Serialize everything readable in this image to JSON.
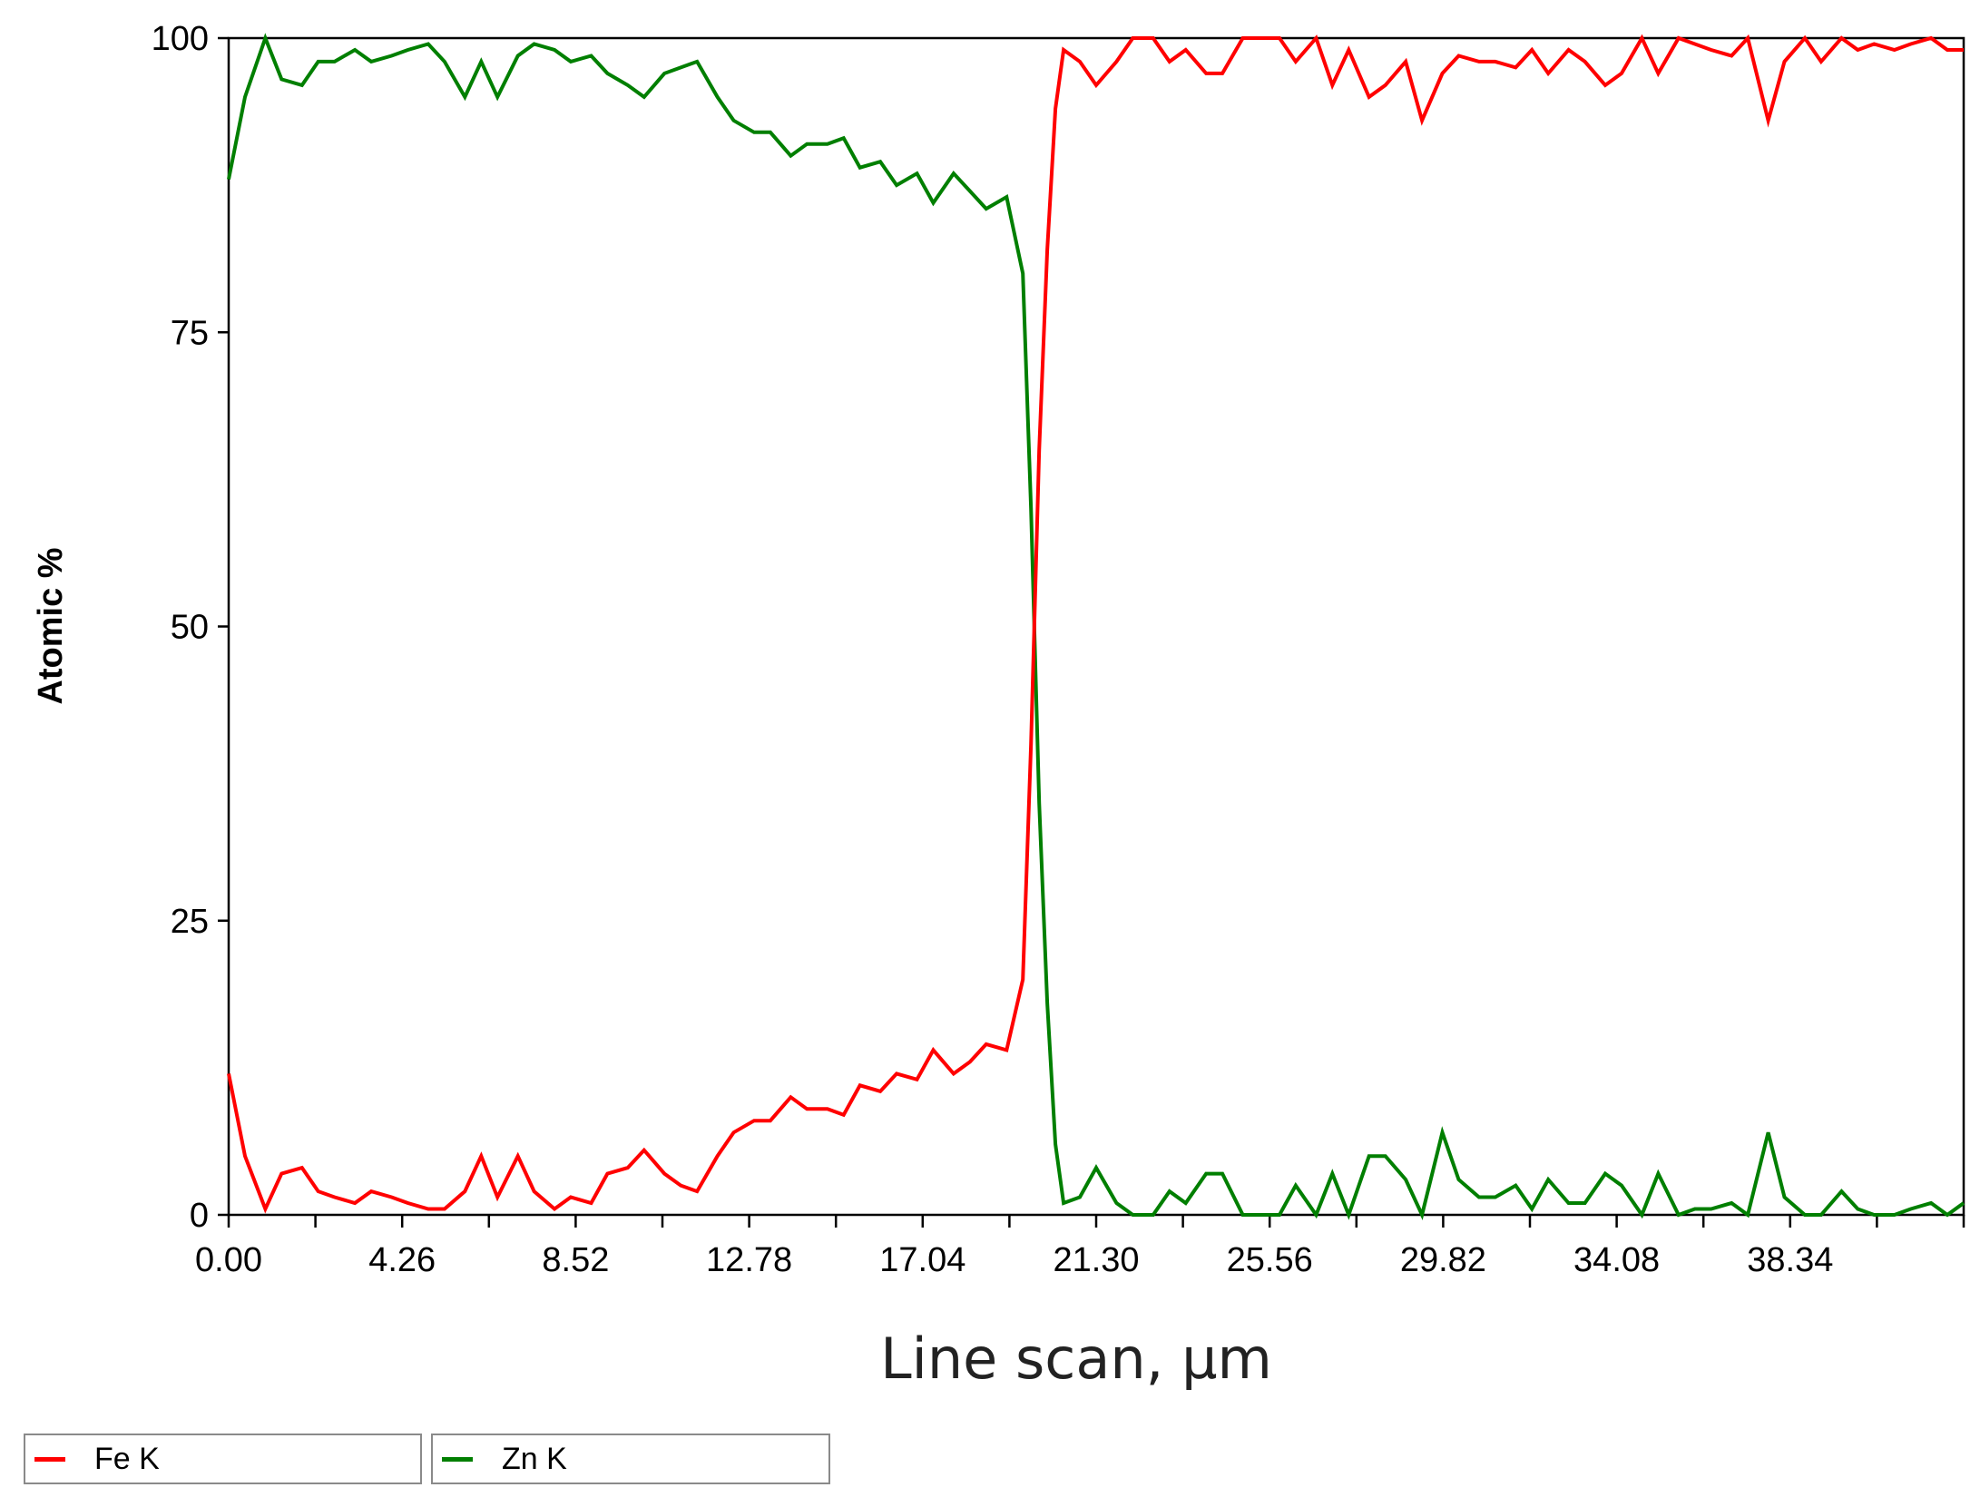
{
  "chart_data": {
    "type": "line",
    "title": "",
    "xlabel": "Line scan, µm",
    "ylabel": "Atomic %",
    "xlim": [
      0,
      42.6
    ],
    "ylim": [
      0,
      100
    ],
    "x_ticks": [
      "0.00",
      "4.26",
      "8.52",
      "12.78",
      "17.04",
      "21.30",
      "25.56",
      "29.82",
      "34.08",
      "38.34"
    ],
    "y_ticks": [
      "0",
      "25",
      "50",
      "75",
      "100"
    ],
    "grid": false,
    "legend_position": "bottom",
    "series": [
      {
        "name": "Fe K",
        "color": "#ff0000",
        "x": [
          0.0,
          0.4,
          0.9,
          1.3,
          1.8,
          2.2,
          2.6,
          3.1,
          3.5,
          4.0,
          4.4,
          4.9,
          5.3,
          5.8,
          6.2,
          6.6,
          7.1,
          7.5,
          8.0,
          8.4,
          8.9,
          9.3,
          9.8,
          10.2,
          10.7,
          11.1,
          11.5,
          12.0,
          12.4,
          12.9,
          13.3,
          13.8,
          14.2,
          14.7,
          15.1,
          15.5,
          16.0,
          16.4,
          16.9,
          17.3,
          17.8,
          18.2,
          18.6,
          19.1,
          19.5,
          19.7,
          19.9,
          20.1,
          20.3,
          20.5,
          20.9,
          21.3,
          21.8,
          22.2,
          22.7,
          23.1,
          23.5,
          24.0,
          24.4,
          24.9,
          25.3,
          25.8,
          26.2,
          26.7,
          27.1,
          27.5,
          28.0,
          28.4,
          28.9,
          29.3,
          29.8,
          30.2,
          30.7,
          31.1,
          31.6,
          32.0,
          32.4,
          32.9,
          33.3,
          33.8,
          34.2,
          34.7,
          35.1,
          35.6,
          36.0,
          36.4,
          36.9,
          37.3,
          37.8,
          38.2,
          38.7,
          39.1,
          39.6,
          40.0,
          40.4,
          40.9,
          41.3,
          41.8,
          42.2,
          42.6
        ],
        "y": [
          12,
          5,
          0.5,
          3.5,
          4,
          2,
          1.5,
          1,
          2,
          1.5,
          1,
          0.5,
          0.5,
          2,
          5,
          1.5,
          5,
          2,
          0.5,
          1.5,
          1,
          3.5,
          4,
          5.5,
          3.5,
          2.5,
          2,
          5,
          7,
          8,
          8,
          10,
          9,
          9,
          8.5,
          11,
          10.5,
          12,
          11.5,
          14,
          12,
          13,
          14.5,
          14,
          20,
          40,
          65,
          82,
          94,
          99,
          98,
          96,
          98,
          100,
          100,
          98,
          99,
          97,
          97,
          100,
          100,
          100,
          98,
          100,
          96,
          99,
          95,
          96,
          98,
          93,
          97,
          98.5,
          98,
          98,
          97.5,
          99,
          97,
          99,
          98,
          96,
          97,
          100,
          97,
          100,
          99.5,
          99,
          98.5,
          100,
          93,
          98,
          100,
          98,
          100,
          99,
          99.5,
          99,
          99.5,
          100,
          99,
          99
        ]
      },
      {
        "name": "Zn K",
        "color": "#007f00",
        "x": [
          0.0,
          0.4,
          0.9,
          1.3,
          1.8,
          2.2,
          2.6,
          3.1,
          3.5,
          4.0,
          4.4,
          4.9,
          5.3,
          5.8,
          6.2,
          6.6,
          7.1,
          7.5,
          8.0,
          8.4,
          8.9,
          9.3,
          9.8,
          10.2,
          10.7,
          11.1,
          11.5,
          12.0,
          12.4,
          12.9,
          13.3,
          13.8,
          14.2,
          14.7,
          15.1,
          15.5,
          16.0,
          16.4,
          16.9,
          17.3,
          17.8,
          18.2,
          18.6,
          19.1,
          19.5,
          19.7,
          19.9,
          20.1,
          20.3,
          20.5,
          20.9,
          21.3,
          21.8,
          22.2,
          22.7,
          23.1,
          23.5,
          24.0,
          24.4,
          24.9,
          25.3,
          25.8,
          26.2,
          26.7,
          27.1,
          27.5,
          28.0,
          28.4,
          28.9,
          29.3,
          29.8,
          30.2,
          30.7,
          31.1,
          31.6,
          32.0,
          32.4,
          32.9,
          33.3,
          33.8,
          34.2,
          34.7,
          35.1,
          35.6,
          36.0,
          36.4,
          36.9,
          37.3,
          37.8,
          38.2,
          38.7,
          39.1,
          39.6,
          40.0,
          40.4,
          40.9,
          41.3,
          41.8,
          42.2,
          42.6
        ],
        "y": [
          88,
          95,
          100,
          96.5,
          96,
          98,
          98,
          99,
          98,
          98.5,
          99,
          99.5,
          98,
          95,
          98,
          95,
          98.5,
          99.5,
          99,
          98,
          98.5,
          97,
          96,
          95,
          97,
          97.5,
          98,
          95,
          93,
          92,
          92,
          90,
          91,
          91,
          91.5,
          89,
          89.5,
          87.5,
          88.5,
          86,
          88.5,
          87,
          85.5,
          86.5,
          80,
          60,
          35,
          18,
          6,
          1,
          1.5,
          4,
          1,
          0,
          0,
          2,
          1,
          3.5,
          3.5,
          0,
          0,
          0,
          2.5,
          0,
          3.5,
          0,
          5,
          5,
          3,
          0,
          7,
          3,
          1.5,
          1.5,
          2.5,
          0.5,
          3,
          1,
          1,
          3.5,
          2.5,
          0,
          3.5,
          0,
          0.5,
          0.5,
          1,
          0,
          7,
          1.5,
          0,
          0,
          2,
          0.5,
          0,
          0,
          0.5,
          1,
          0,
          1
        ]
      }
    ]
  }
}
